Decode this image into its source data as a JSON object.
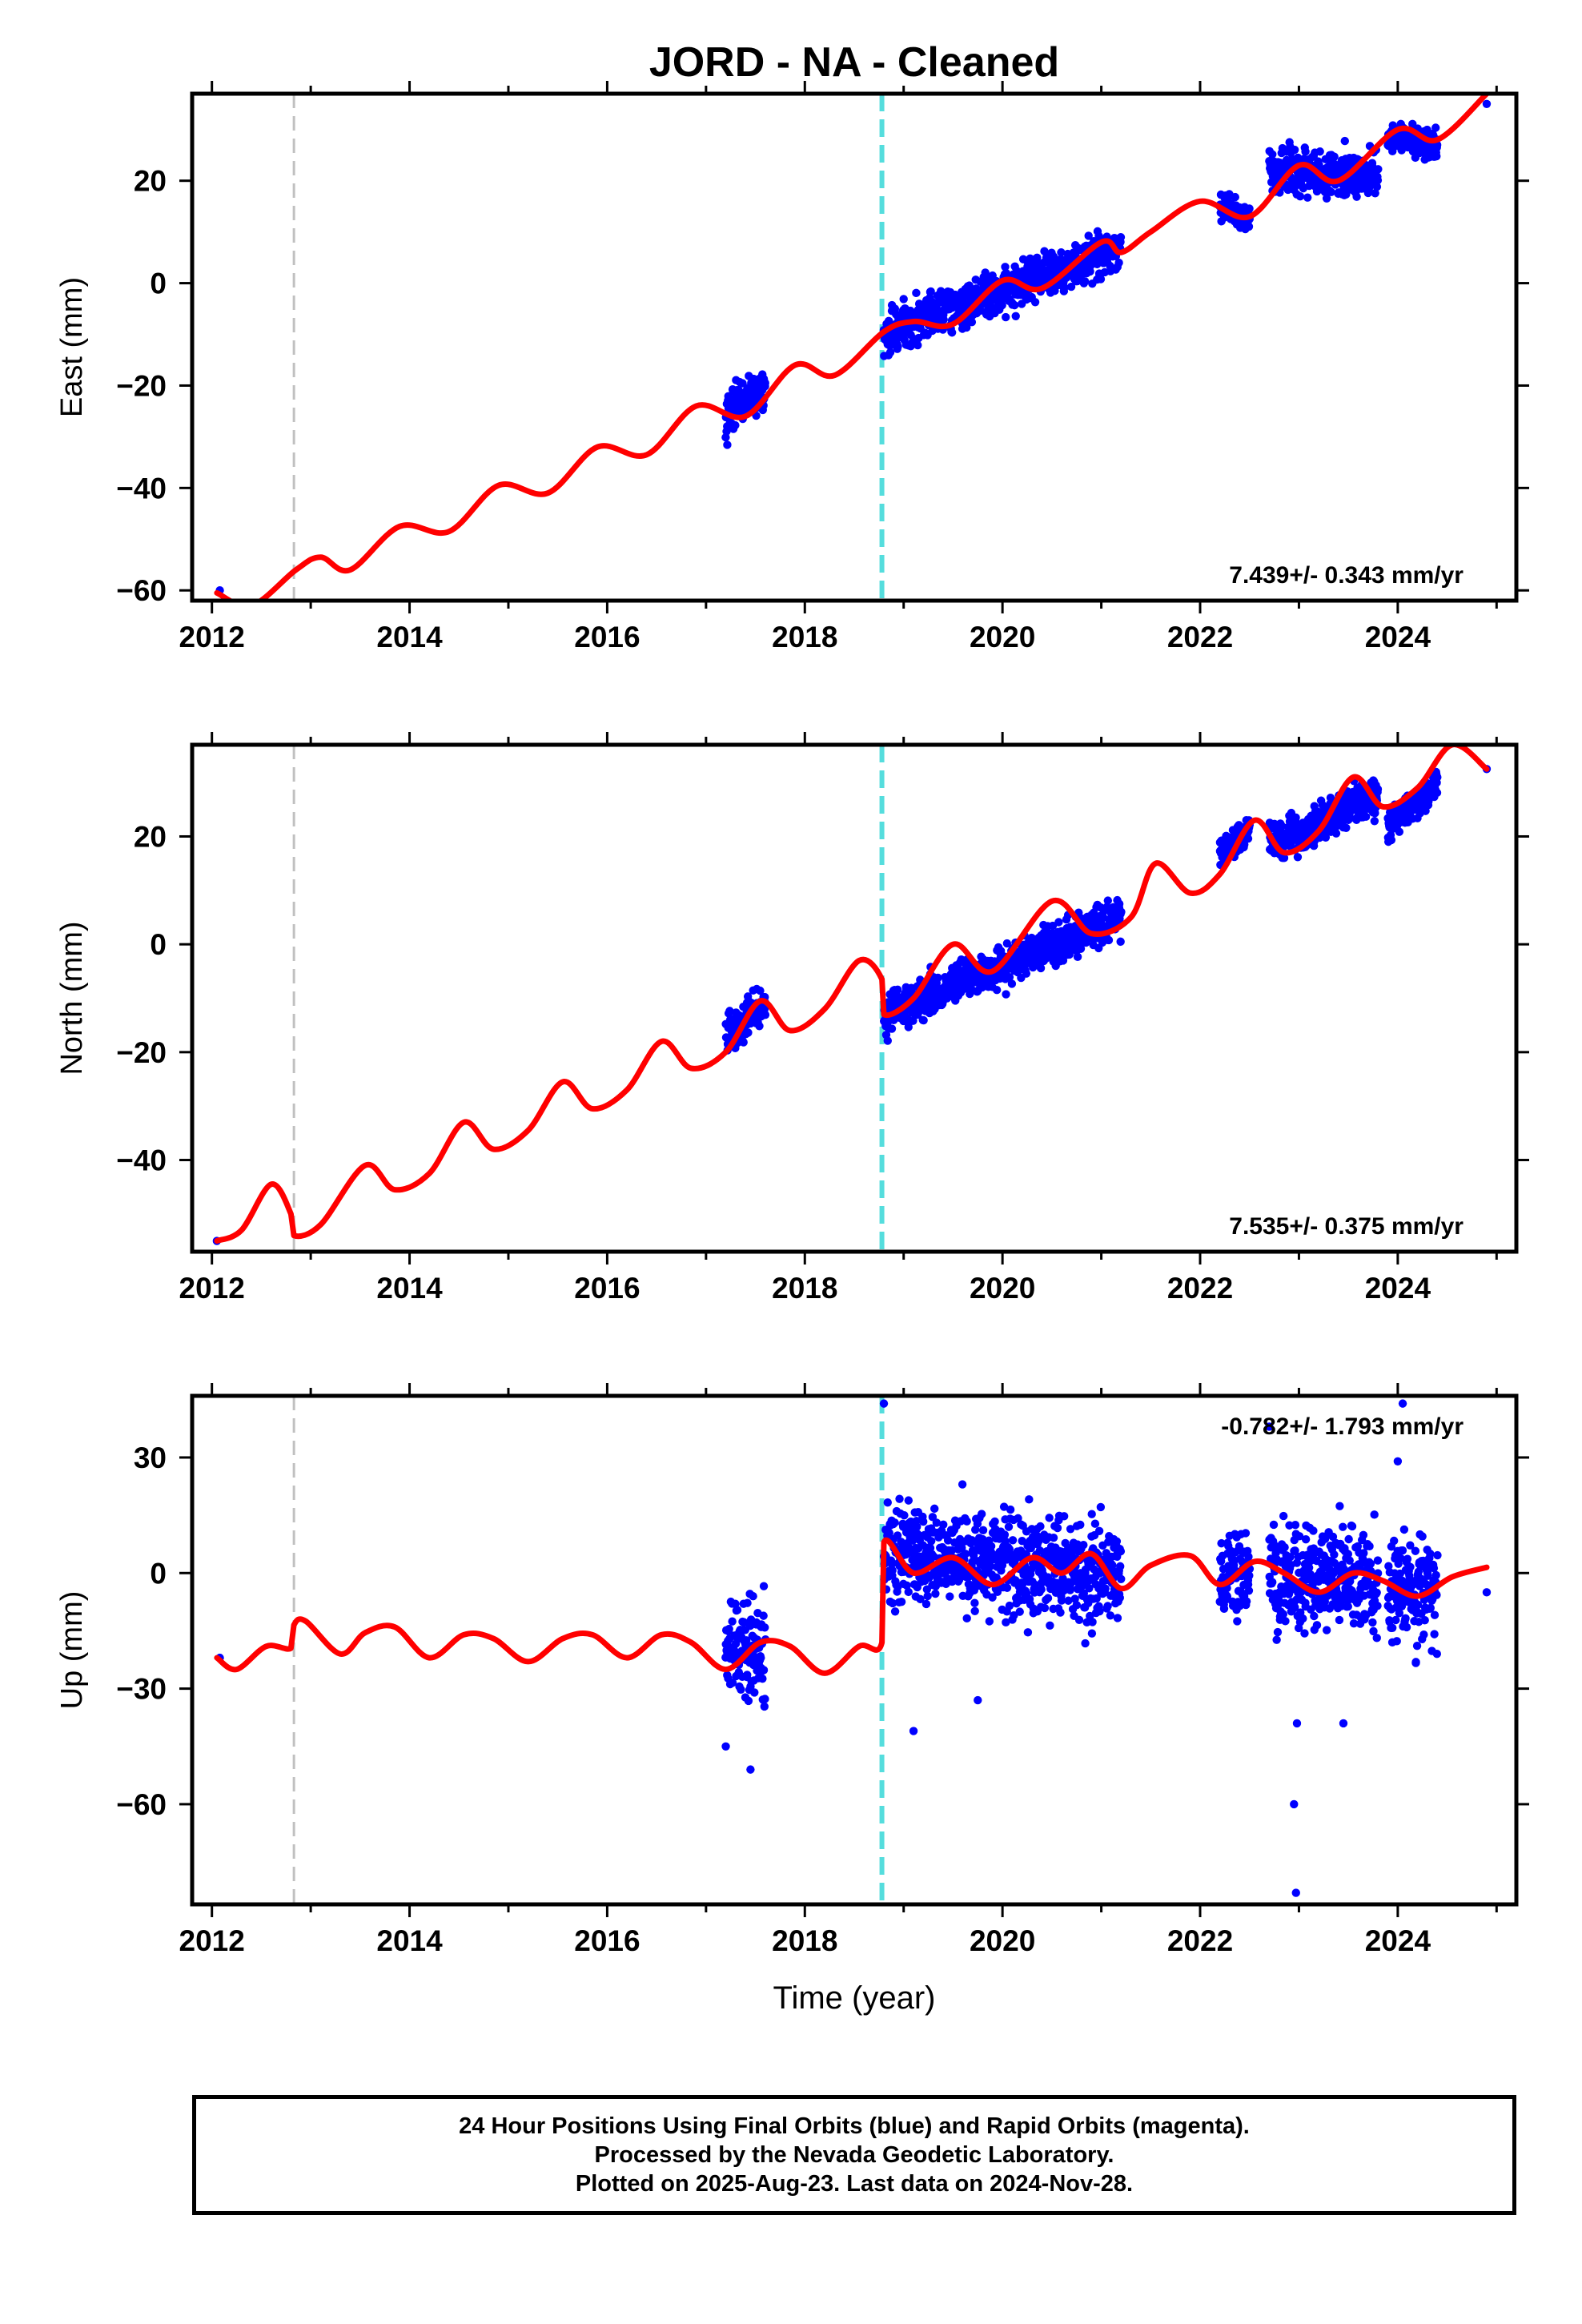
{
  "title": "JORD  - NA - Cleaned",
  "colors": {
    "observations": "#0000ff",
    "model": "#ff0000",
    "antenna_change": "#55dddd",
    "equipment_change": "#c0c0c0"
  },
  "events": {
    "equipment_change_year": 2012.83,
    "antenna_change_year": 2018.78
  },
  "chart_data": [
    {
      "type": "scatter",
      "component": "east",
      "ylabel": "East (mm)",
      "xlabel": "",
      "xlim": [
        2011.8,
        2025.2
      ],
      "ylim": [
        -62,
        37
      ],
      "xticks": [
        2012,
        2014,
        2016,
        2018,
        2020,
        2022,
        2024
      ],
      "yticks": [
        -60,
        -40,
        -20,
        0,
        20
      ],
      "velocity": "7.439+/- 0.343 mm/yr",
      "velocity_position": "bottom-right",
      "series": [
        {
          "kind": "model",
          "x": [
            2012.05,
            2012.4,
            2012.85,
            2013.1,
            2013.4,
            2013.9,
            2014.4,
            2014.9,
            2015.4,
            2015.9,
            2016.4,
            2016.9,
            2017.4,
            2017.9,
            2018.3,
            2018.8,
            2019.1,
            2019.5,
            2020.0,
            2020.4,
            2021.0,
            2021.2,
            2021.5,
            2022.0,
            2022.5,
            2023.0,
            2023.4,
            2024.0,
            2024.4,
            2024.9
          ],
          "y": [
            -60.5,
            -63.0,
            -56.0,
            -53.5,
            -56.0,
            -47.5,
            -48.5,
            -39.5,
            -41.0,
            -32.0,
            -33.5,
            -24.0,
            -26.0,
            -16.0,
            -18.0,
            -9.5,
            -7.5,
            -8.0,
            0.5,
            -1.0,
            8.0,
            6.0,
            10.0,
            16.0,
            13.0,
            23.0,
            20.0,
            30.0,
            28.0,
            37.0
          ]
        },
        {
          "kind": "observations",
          "segments": [
            {
              "x_range": [
                2012.08,
                2012.1
              ],
              "center": [
                -60.0,
                -60.0
              ],
              "spread": 0.5
            },
            {
              "x_range": [
                2017.2,
                2017.6
              ],
              "center": [
                -25.0,
                -21.0
              ],
              "spread": 3.0
            },
            {
              "x_range": [
                2018.8,
                2021.2
              ],
              "center": [
                -10.0,
                7.0
              ],
              "spread": 3.0
            },
            {
              "x_range": [
                2022.2,
                2022.5
              ],
              "center": [
                15.0,
                13.0
              ],
              "spread": 2.0
            },
            {
              "x_range": [
                2022.7,
                2023.8
              ],
              "center": [
                22.0,
                21.0
              ],
              "spread": 3.0
            },
            {
              "x_range": [
                2023.9,
                2024.4
              ],
              "center": [
                28.0,
                27.0
              ],
              "spread": 2.0
            },
            {
              "x_range": [
                2024.9,
                2024.92
              ],
              "center": [
                35.0,
                35.0
              ],
              "spread": 0.5
            }
          ]
        }
      ]
    },
    {
      "type": "scatter",
      "component": "north",
      "ylabel": "North (mm)",
      "xlabel": "",
      "xlim": [
        2011.8,
        2025.2
      ],
      "ylim": [
        -57,
        37
      ],
      "xticks": [
        2012,
        2014,
        2016,
        2018,
        2020,
        2022,
        2024
      ],
      "yticks": [
        -40,
        -20,
        0,
        20
      ],
      "velocity": "7.535+/- 0.375 mm/yr",
      "velocity_position": "bottom-right",
      "series": [
        {
          "kind": "model",
          "x": [
            2012.05,
            2012.3,
            2012.6,
            2012.8,
            2012.83,
            2013.1,
            2013.55,
            2013.85,
            2014.2,
            2014.55,
            2014.85,
            2015.2,
            2015.55,
            2015.85,
            2016.2,
            2016.55,
            2016.85,
            2017.2,
            2017.55,
            2017.85,
            2018.2,
            2018.55,
            2018.78,
            2018.8,
            2019.1,
            2019.5,
            2019.9,
            2020.5,
            2020.9,
            2021.3,
            2021.55,
            2021.9,
            2022.2,
            2022.55,
            2022.85,
            2023.2,
            2023.55,
            2023.85,
            2024.2,
            2024.55,
            2024.9
          ],
          "y": [
            -55.0,
            -53.0,
            -44.5,
            -50.0,
            -54.0,
            -52.0,
            -41.0,
            -45.5,
            -42.5,
            -33.0,
            -38.0,
            -34.5,
            -25.5,
            -30.5,
            -27.0,
            -18.0,
            -23.0,
            -20.0,
            -10.5,
            -16.0,
            -12.0,
            -3.0,
            -6.5,
            -13.0,
            -10.0,
            0.0,
            -5.0,
            8.0,
            2.0,
            5.0,
            15.0,
            9.5,
            13.0,
            23.0,
            17.0,
            21.0,
            31.0,
            25.5,
            29.0,
            37.0,
            32.5
          ]
        },
        {
          "kind": "observations",
          "segments": [
            {
              "x_range": [
                2012.05,
                2012.07
              ],
              "center": [
                -55.0,
                -55.0
              ],
              "spread": 0.5
            },
            {
              "x_range": [
                2017.2,
                2017.6
              ],
              "center": [
                -17.0,
                -11.0
              ],
              "spread": 2.5
            },
            {
              "x_range": [
                2018.8,
                2021.2
              ],
              "center": [
                -13.0,
                5.0
              ],
              "spread": 2.5
            },
            {
              "x_range": [
                2022.2,
                2022.5
              ],
              "center": [
                17.0,
                21.0
              ],
              "spread": 2.0
            },
            {
              "x_range": [
                2022.7,
                2023.8
              ],
              "center": [
                18.0,
                28.0
              ],
              "spread": 2.5
            },
            {
              "x_range": [
                2023.9,
                2024.4
              ],
              "center": [
                22.0,
                29.0
              ],
              "spread": 2.0
            },
            {
              "x_range": [
                2024.9,
                2024.92
              ],
              "center": [
                32.5,
                32.5
              ],
              "spread": 0.5
            }
          ]
        }
      ]
    },
    {
      "type": "scatter",
      "component": "up",
      "ylabel": "Up (mm)",
      "xlabel": "Time (year)",
      "xlim": [
        2011.8,
        2025.2
      ],
      "ylim": [
        -86,
        46
      ],
      "xticks": [
        2012,
        2014,
        2016,
        2018,
        2020,
        2022,
        2024
      ],
      "yticks": [
        -60,
        -30,
        0,
        30
      ],
      "velocity": "-0.782+/- 1.793 mm/yr",
      "velocity_position": "top-right",
      "series": [
        {
          "kind": "model",
          "x": [
            2012.05,
            2012.25,
            2012.55,
            2012.8,
            2012.83,
            2012.95,
            2013.3,
            2013.55,
            2013.85,
            2014.2,
            2014.55,
            2014.85,
            2015.2,
            2015.55,
            2015.85,
            2016.2,
            2016.55,
            2016.85,
            2017.2,
            2017.55,
            2017.85,
            2018.2,
            2018.55,
            2018.78,
            2018.8,
            2019.1,
            2019.5,
            2019.9,
            2020.3,
            2020.6,
            2020.9,
            2021.2,
            2021.5,
            2021.9,
            2022.2,
            2022.55,
            2022.85,
            2023.2,
            2023.55,
            2023.85,
            2024.2,
            2024.55,
            2024.9
          ],
          "y": [
            -22.0,
            -25.0,
            -19.0,
            -19.5,
            -13.5,
            -12.5,
            -21.0,
            -15.5,
            -14.0,
            -22.0,
            -16.0,
            -17.0,
            -23.0,
            -17.0,
            -16.0,
            -22.0,
            -16.0,
            -18.0,
            -25.0,
            -18.0,
            -19.0,
            -26.0,
            -19.0,
            -18.0,
            8.0,
            0.0,
            4.0,
            -3.0,
            4.0,
            0.0,
            5.0,
            -4.0,
            2.0,
            4.5,
            -3.0,
            3.0,
            0.0,
            -5.0,
            0.0,
            -2.0,
            -6.0,
            -1.0,
            1.5
          ]
        },
        {
          "kind": "observations",
          "segments": [
            {
              "x_range": [
                2012.08,
                2012.1
              ],
              "center": [
                -22.0,
                -22.0
              ],
              "spread": 0.5
            },
            {
              "x_range": [
                2017.2,
                2017.6
              ],
              "center": [
                -20.0,
                -20.0
              ],
              "spread": 10.0
            },
            {
              "x_range": [
                2018.8,
                2021.2
              ],
              "center": [
                5.0,
                0.0
              ],
              "spread": 9.0
            },
            {
              "x_range": [
                2022.2,
                2022.5
              ],
              "center": [
                0.0,
                0.0
              ],
              "spread": 8.0
            },
            {
              "x_range": [
                2022.7,
                2023.8
              ],
              "center": [
                0.0,
                -2.0
              ],
              "spread": 10.0
            },
            {
              "x_range": [
                2023.9,
                2024.4
              ],
              "center": [
                -3.0,
                -3.0
              ],
              "spread": 10.0
            },
            {
              "x_range": [
                2024.9,
                2024.92
              ],
              "center": [
                -5.0,
                -5.0
              ],
              "spread": 0.5
            }
          ],
          "outliers": [
            {
              "x": 2017.2,
              "y": -45.0
            },
            {
              "x": 2017.45,
              "y": -51.0
            },
            {
              "x": 2019.1,
              "y": -41.0
            },
            {
              "x": 2019.75,
              "y": -33.0
            },
            {
              "x": 2018.8,
              "y": 44.0
            },
            {
              "x": 2022.7,
              "y": 38.0
            },
            {
              "x": 2022.95,
              "y": -60.0
            },
            {
              "x": 2022.97,
              "y": -83.0
            },
            {
              "x": 2022.98,
              "y": -39.0
            },
            {
              "x": 2023.45,
              "y": -39.0
            },
            {
              "x": 2024.05,
              "y": 44.0
            },
            {
              "x": 2024.0,
              "y": 29.0
            }
          ]
        }
      ]
    }
  ],
  "caption": {
    "line1": "24 Hour Positions Using Final Orbits (blue) and Rapid Orbits (magenta).",
    "line2": "Processed by the Nevada Geodetic Laboratory.",
    "line3": "Plotted on 2025-Aug-23. Last data on 2024-Nov-28."
  }
}
